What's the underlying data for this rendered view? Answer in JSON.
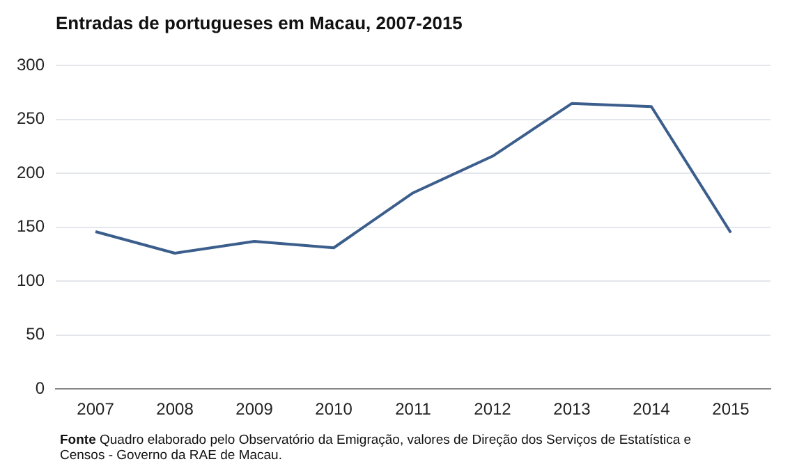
{
  "chart_data": {
    "type": "line",
    "title": "Entradas  de portugueses  em Macau, 2007-2015",
    "categories": [
      "2007",
      "2008",
      "2009",
      "2010",
      "2011",
      "2012",
      "2013",
      "2014",
      "2015"
    ],
    "series": [
      {
        "color": "#3b5e8c",
        "values": [
          146,
          126,
          137,
          131,
          182,
          216,
          265,
          262,
          145
        ]
      }
    ],
    "ylim": [
      0,
      300
    ],
    "yticks": [
      0,
      50,
      100,
      150,
      200,
      250,
      300
    ],
    "grid": "y",
    "legend": false,
    "marker": "none",
    "line_style": "solid",
    "annotations": [
      "Fonte  Quadro elaborado  pelo  Observatório da Emigração,  valores de Direção dos Serviços de Estatística e Censos - Governo da RAE de Macau."
    ]
  }
}
